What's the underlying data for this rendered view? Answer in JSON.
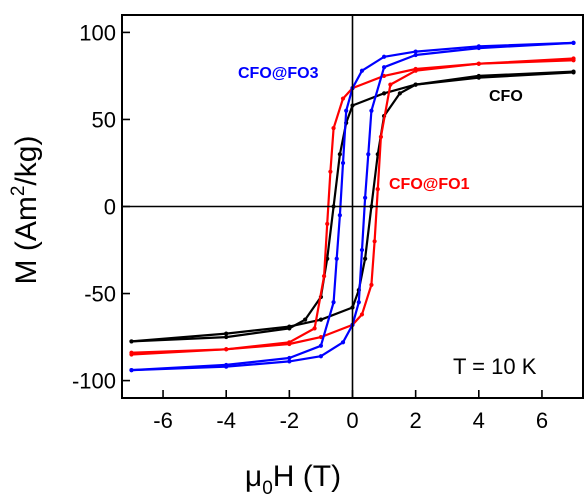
{
  "chart_data": {
    "type": "line",
    "xlabel_symbol": "μ",
    "xlabel_sub": "0",
    "xlabel_rest": "H (T)",
    "ylabel_pre": "M (Am",
    "ylabel_sup": "2",
    "ylabel_post": "/kg)",
    "xlim": [
      -7.3,
      7.3
    ],
    "ylim": [
      -110,
      110
    ],
    "xticks": [
      -6,
      -4,
      -2,
      0,
      2,
      4,
      6
    ],
    "yticks": [
      -100,
      -50,
      0,
      50,
      100
    ],
    "grid": false,
    "annotation": "T = 10 K",
    "series": [
      {
        "name": "CFO",
        "color": "#000000",
        "upper": [
          [
            -7,
            -77.5
          ],
          [
            -4,
            -75
          ],
          [
            -2,
            -70
          ],
          [
            -1.5,
            -65
          ],
          [
            -1,
            -52
          ],
          [
            -0.8,
            -30
          ],
          [
            -0.6,
            0
          ],
          [
            -0.4,
            30
          ],
          [
            -0.2,
            48
          ],
          [
            0,
            58
          ],
          [
            1,
            65
          ],
          [
            2,
            70
          ],
          [
            4,
            74
          ],
          [
            7,
            77
          ]
        ],
        "lower": [
          [
            -7,
            -77.5
          ],
          [
            -4,
            -73
          ],
          [
            -2,
            -69
          ],
          [
            -1,
            -65
          ],
          [
            0,
            -58
          ],
          [
            0.2,
            -48
          ],
          [
            0.4,
            -30
          ],
          [
            0.6,
            0
          ],
          [
            0.8,
            30
          ],
          [
            1,
            52
          ],
          [
            1.5,
            65
          ],
          [
            2,
            70
          ],
          [
            4,
            75
          ],
          [
            7,
            77.5
          ]
        ]
      },
      {
        "name": "CFO@FO1",
        "color": "#ff0000",
        "upper": [
          [
            -7,
            -84
          ],
          [
            -4,
            -82
          ],
          [
            -2,
            -78
          ],
          [
            -1.2,
            -70
          ],
          [
            -0.9,
            -40
          ],
          [
            -0.8,
            -10
          ],
          [
            -0.7,
            20
          ],
          [
            -0.6,
            45
          ],
          [
            -0.3,
            62
          ],
          [
            0,
            68
          ],
          [
            1,
            75
          ],
          [
            2,
            79
          ],
          [
            4,
            82
          ],
          [
            7,
            85
          ]
        ],
        "lower": [
          [
            -7,
            -85
          ],
          [
            -4,
            -82
          ],
          [
            -2,
            -79
          ],
          [
            -1,
            -75
          ],
          [
            0,
            -68
          ],
          [
            0.3,
            -62
          ],
          [
            0.6,
            -45
          ],
          [
            0.7,
            -20
          ],
          [
            0.8,
            10
          ],
          [
            0.9,
            40
          ],
          [
            1.2,
            70
          ],
          [
            2,
            78
          ],
          [
            4,
            82
          ],
          [
            7,
            84
          ]
        ]
      },
      {
        "name": "CFO@FO3",
        "color": "#0000ff",
        "upper": [
          [
            -7,
            -94
          ],
          [
            -4,
            -91
          ],
          [
            -2,
            -87
          ],
          [
            -1,
            -80
          ],
          [
            -0.6,
            -55
          ],
          [
            -0.5,
            -30
          ],
          [
            -0.4,
            -5
          ],
          [
            -0.3,
            25
          ],
          [
            -0.2,
            55
          ],
          [
            0,
            68
          ],
          [
            0.3,
            78
          ],
          [
            1,
            86
          ],
          [
            2,
            89
          ],
          [
            4,
            92
          ],
          [
            7,
            94
          ]
        ],
        "lower": [
          [
            -7,
            -94
          ],
          [
            -4,
            -92
          ],
          [
            -2,
            -89
          ],
          [
            -1,
            -86
          ],
          [
            -0.3,
            -78
          ],
          [
            0,
            -68
          ],
          [
            0.2,
            -55
          ],
          [
            0.3,
            -25
          ],
          [
            0.4,
            5
          ],
          [
            0.5,
            30
          ],
          [
            0.6,
            55
          ],
          [
            1,
            80
          ],
          [
            2,
            87
          ],
          [
            4,
            91
          ],
          [
            7,
            94
          ]
        ]
      }
    ]
  },
  "labels": {
    "cfo": "CFO",
    "cfo_fo1": "CFO@FO1",
    "cfo_fo3": "CFO@FO3"
  }
}
